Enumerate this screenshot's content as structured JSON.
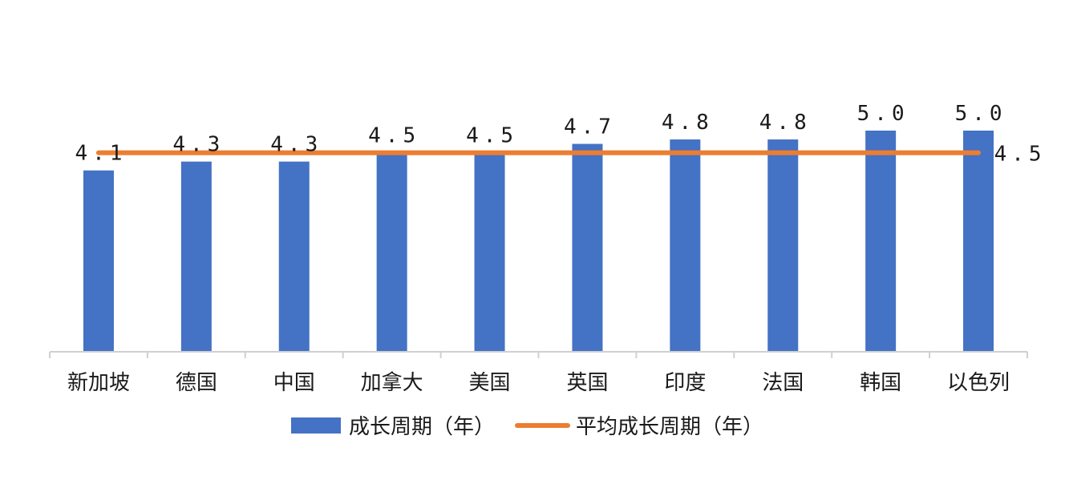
{
  "chart_data": {
    "type": "bar",
    "categories": [
      "新加坡",
      "德国",
      "中国",
      "加拿大",
      "美国",
      "英国",
      "印度",
      "法国",
      "韩国",
      "以色列"
    ],
    "series": [
      {
        "name": "成长周期（年）",
        "type": "bar",
        "color": "#4472C4",
        "values": [
          4.1,
          4.3,
          4.3,
          4.5,
          4.5,
          4.7,
          4.8,
          4.8,
          5.0,
          5.0
        ],
        "labels": [
          "4.1",
          "4.3",
          "4.3",
          "4.5",
          "4.5",
          "4.7",
          "4.8",
          "4.8",
          "5.0",
          "5.0"
        ]
      },
      {
        "name": "平均成长周期（年）",
        "type": "line",
        "color": "#ED7D31",
        "values": [
          4.5,
          4.5,
          4.5,
          4.5,
          4.5,
          4.5,
          4.5,
          4.5,
          4.5,
          4.5
        ],
        "end_label": "4.5"
      }
    ],
    "ylim": [
      0,
      5
    ],
    "grid": false,
    "legend_position": "bottom"
  }
}
